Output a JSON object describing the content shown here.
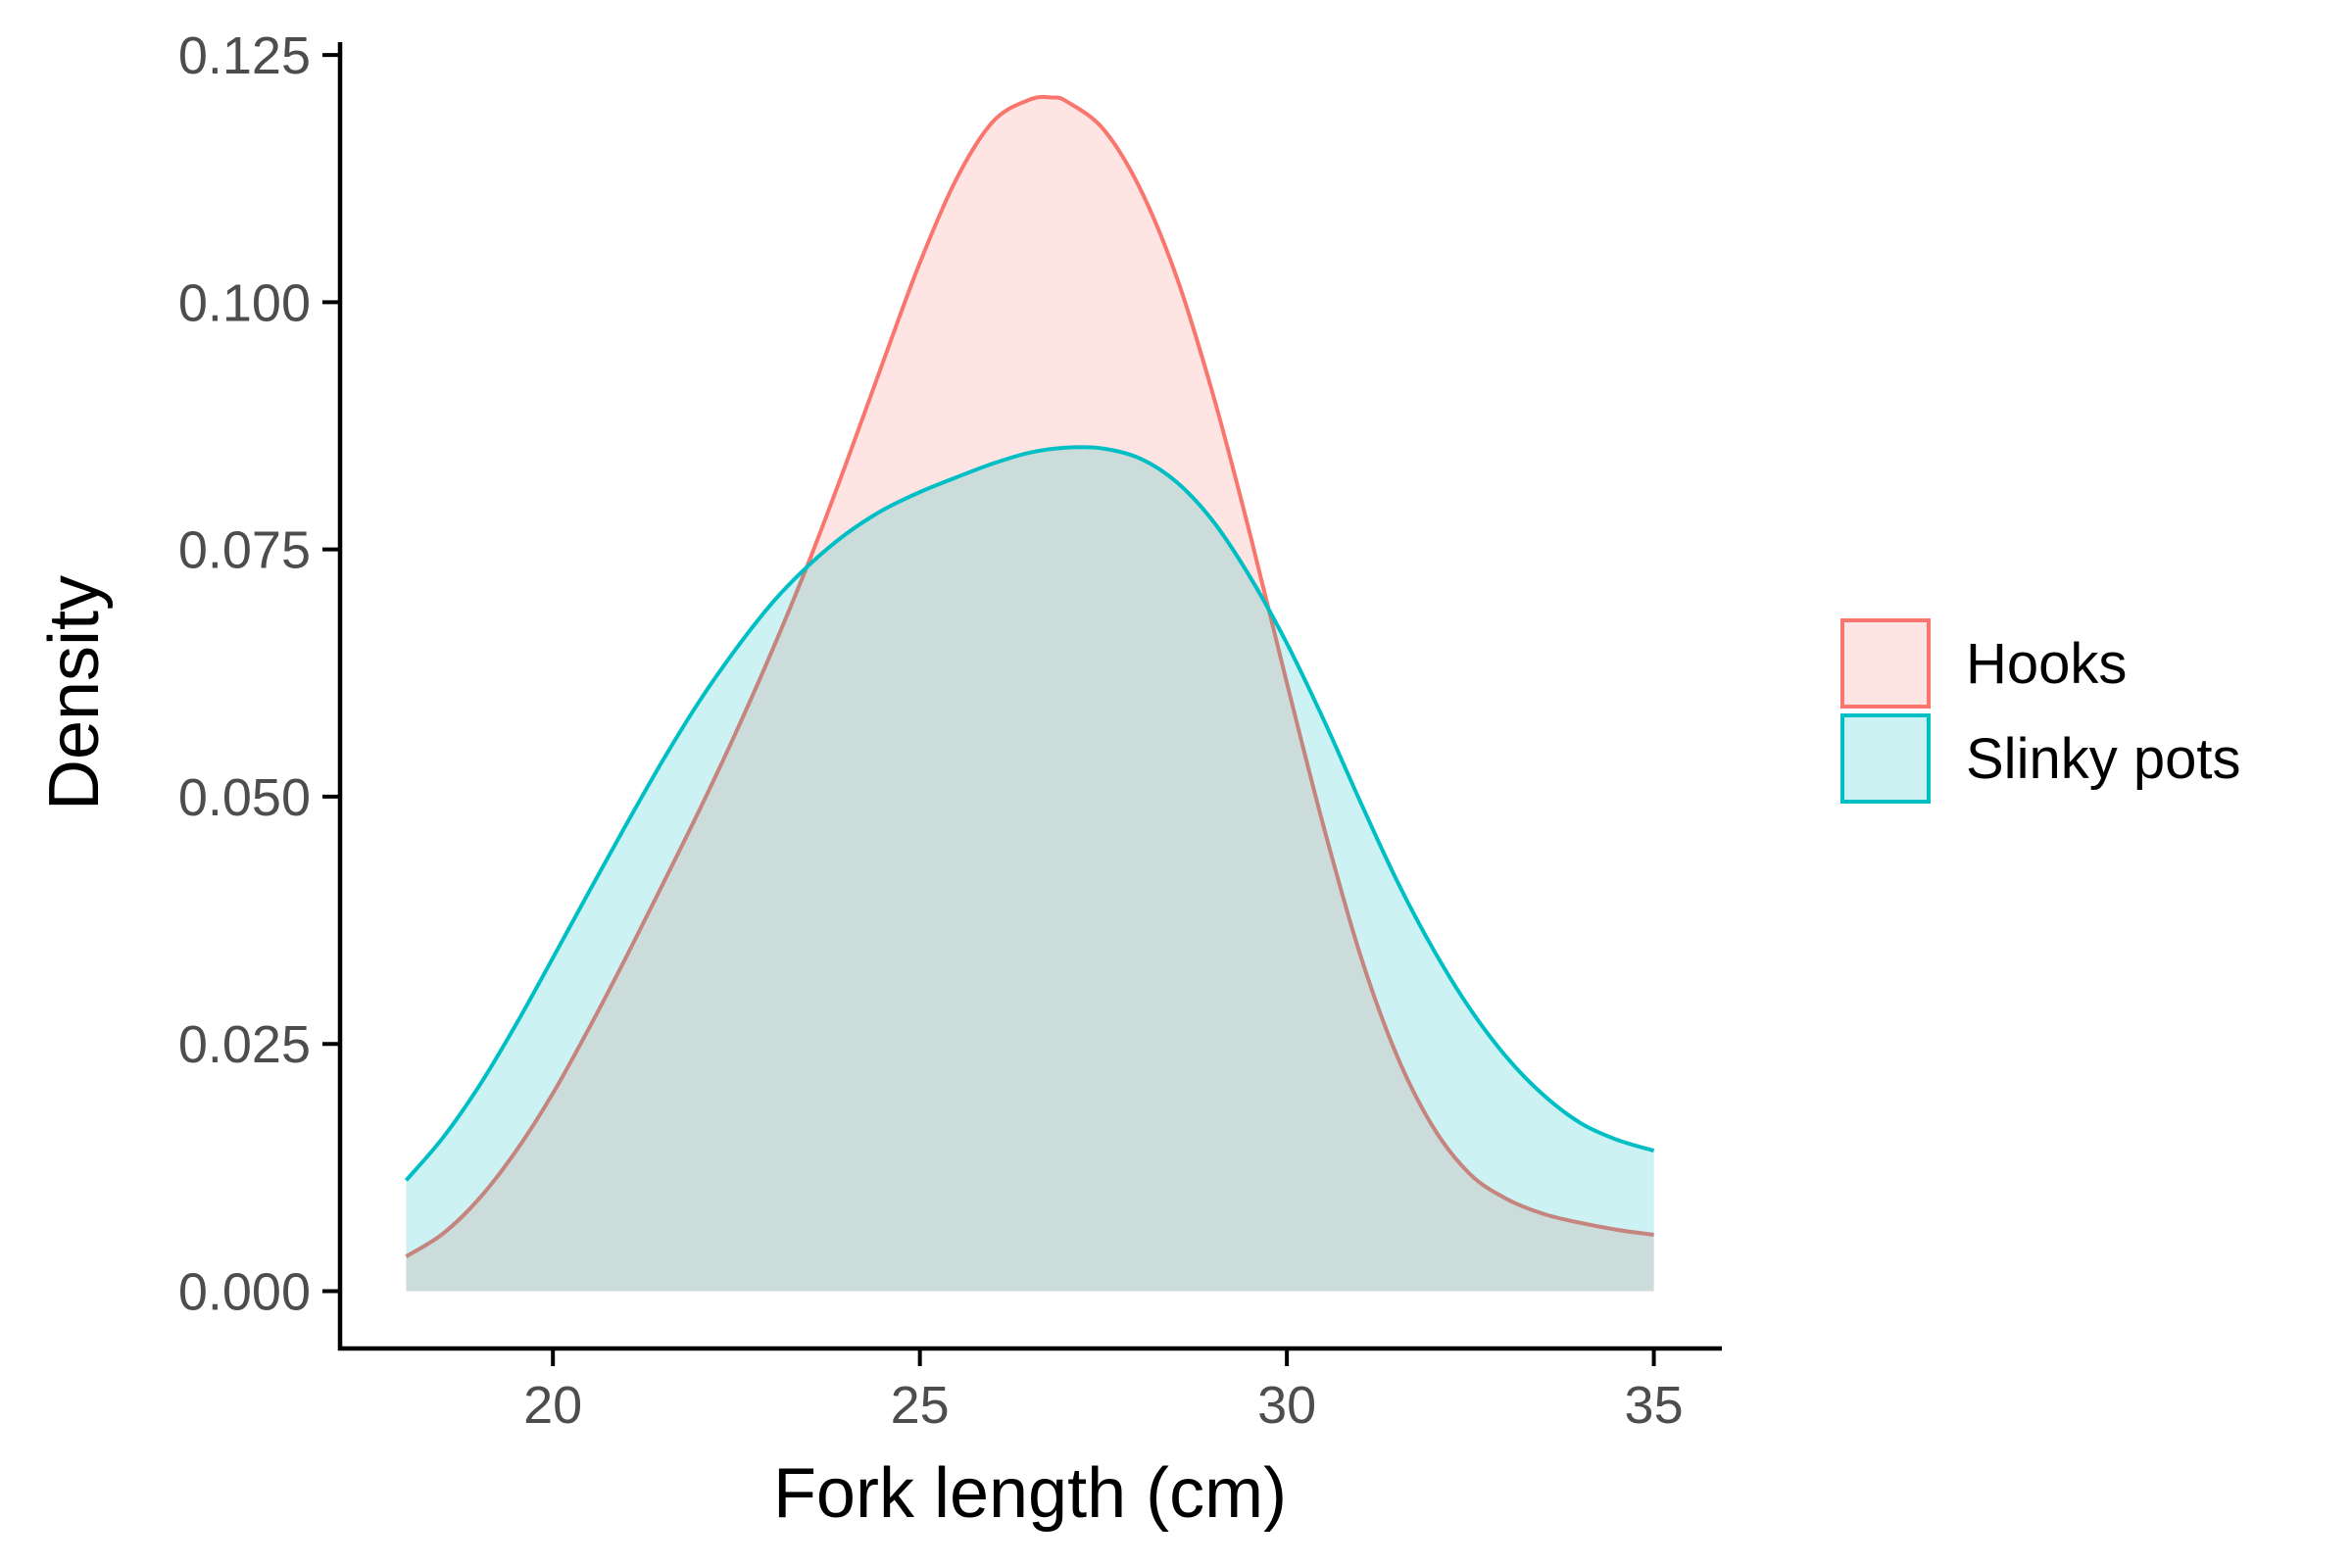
{
  "chart_data": {
    "type": "area",
    "title": "",
    "xlabel": "Fork length (cm)",
    "ylabel": "Density",
    "xlim": [
      17.1,
      35.9
    ],
    "ylim": [
      -0.0058,
      0.1263
    ],
    "grid": false,
    "legend_position": "right",
    "x_ticks": [
      {
        "value": 20,
        "label": "20"
      },
      {
        "value": 25,
        "label": "25"
      },
      {
        "value": 30,
        "label": "30"
      },
      {
        "value": 35,
        "label": "35"
      }
    ],
    "y_ticks": [
      {
        "value": 0.0,
        "label": "0.000"
      },
      {
        "value": 0.025,
        "label": "0.025"
      },
      {
        "value": 0.05,
        "label": "0.050"
      },
      {
        "value": 0.075,
        "label": "0.075"
      },
      {
        "value": 0.1,
        "label": "0.100"
      },
      {
        "value": 0.125,
        "label": "0.125"
      }
    ],
    "series": [
      {
        "name": "Hooks",
        "line_color": "#F8766D",
        "fill_color": "#F8766D",
        "x": [
          18,
          18.5,
          19,
          19.5,
          20,
          20.5,
          21,
          21.5,
          22,
          22.5,
          23,
          23.5,
          24,
          24.5,
          25,
          25.5,
          26,
          26.5,
          26.8,
          27,
          27.5,
          28,
          28.5,
          29,
          29.5,
          30,
          30.5,
          31,
          31.5,
          32,
          32.5,
          33,
          33.5,
          34,
          34.5,
          35
        ],
        "y": [
          0.0035,
          0.0058,
          0.0094,
          0.0142,
          0.02,
          0.0267,
          0.0338,
          0.0412,
          0.0487,
          0.0566,
          0.065,
          0.074,
          0.0838,
          0.094,
          0.104,
          0.1125,
          0.1183,
          0.1205,
          0.1207,
          0.1203,
          0.1175,
          0.1115,
          0.1025,
          0.0905,
          0.0765,
          0.0615,
          0.047,
          0.034,
          0.0238,
          0.0165,
          0.0118,
          0.0093,
          0.0078,
          0.0069,
          0.0062,
          0.0057
        ]
      },
      {
        "name": "Slinky pots",
        "line_color": "#00BFC4",
        "fill_color": "#00BFC4",
        "x": [
          18,
          18.5,
          19,
          19.5,
          20,
          20.5,
          21,
          21.5,
          22,
          22.5,
          23,
          23.5,
          24,
          24.5,
          25,
          25.5,
          26,
          26.5,
          27,
          27.5,
          28,
          28.5,
          29,
          29.5,
          30,
          30.5,
          31,
          31.5,
          32,
          32.5,
          33,
          33.5,
          34,
          34.5,
          35
        ],
        "y": [
          0.0112,
          0.0155,
          0.0208,
          0.027,
          0.0337,
          0.0405,
          0.0472,
          0.0537,
          0.0597,
          0.065,
          0.0697,
          0.0735,
          0.0766,
          0.079,
          0.0808,
          0.0823,
          0.0837,
          0.0848,
          0.0853,
          0.0852,
          0.0842,
          0.0818,
          0.0778,
          0.0722,
          0.0655,
          0.0578,
          0.0495,
          0.0415,
          0.0345,
          0.0285,
          0.0236,
          0.0198,
          0.017,
          0.0153,
          0.0142
        ]
      }
    ]
  }
}
